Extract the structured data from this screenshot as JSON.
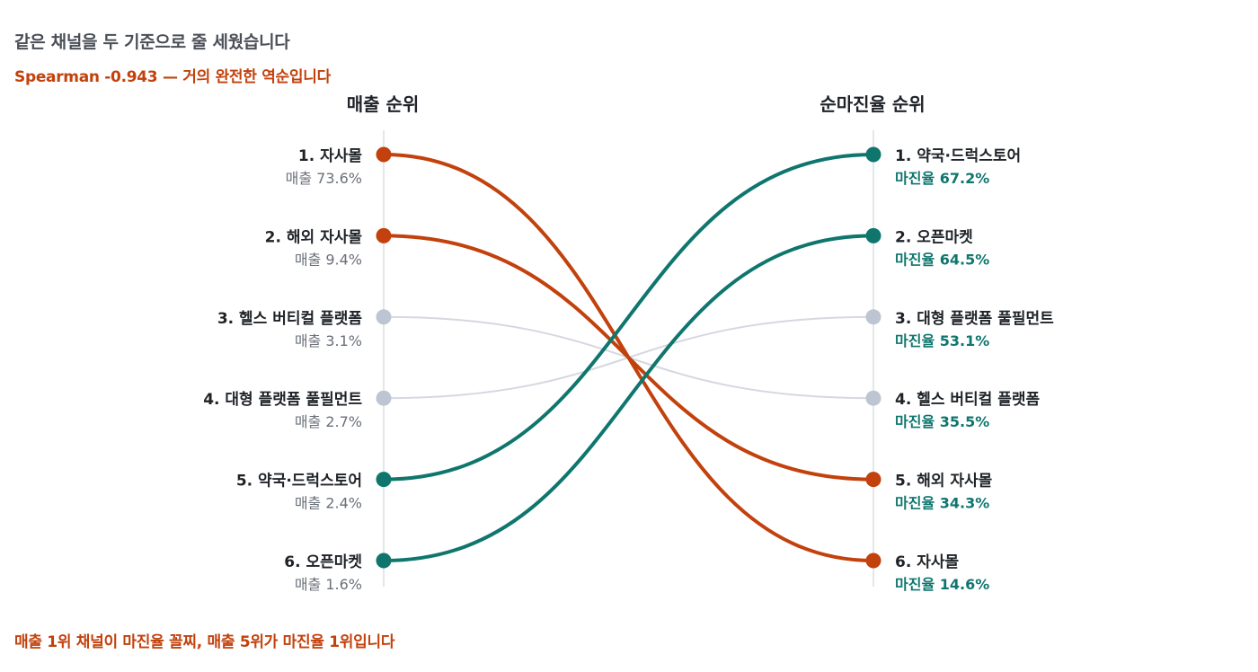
{
  "title": "같은 채널을 두 기준으로 줄 세웠습니다",
  "subtitle": "Spearman -0.943 — 거의 완전한 역순입니다",
  "footnote": "매출 1위 채널이 마진율 꼴찌, 매출 5위가 마진율 1위입니다",
  "colors": {
    "falling": "#c2410c",
    "rising": "#0f766e",
    "neutral_line": "#d5d8e0",
    "neutral_dot": "#bcc5d1",
    "axis": "#dcdde1"
  },
  "chart_data": {
    "type": "slope",
    "left_axis_title": "매출 순위",
    "right_axis_title": "순마진율 순위",
    "left_value_prefix": "매출",
    "right_value_prefix": "마진율",
    "items": [
      {
        "name": "자사몰",
        "sales_rank": 1,
        "sales_share_pct": 73.6,
        "margin_rank": 6,
        "margin_pct": 14.6,
        "highlight": "falling"
      },
      {
        "name": "해외 자사몰",
        "sales_rank": 2,
        "sales_share_pct": 9.4,
        "margin_rank": 5,
        "margin_pct": 34.3,
        "highlight": "falling"
      },
      {
        "name": "헬스 버티컬 플랫폼",
        "sales_rank": 3,
        "sales_share_pct": 3.1,
        "margin_rank": 4,
        "margin_pct": 35.5,
        "highlight": "neutral"
      },
      {
        "name": "대형 플랫폼 풀필먼트",
        "sales_rank": 4,
        "sales_share_pct": 2.7,
        "margin_rank": 3,
        "margin_pct": 53.1,
        "highlight": "neutral"
      },
      {
        "name": "약국·드럭스토어",
        "sales_rank": 5,
        "sales_share_pct": 2.4,
        "margin_rank": 1,
        "margin_pct": 67.2,
        "highlight": "rising"
      },
      {
        "name": "오픈마켓",
        "sales_rank": 6,
        "sales_share_pct": 1.6,
        "margin_rank": 2,
        "margin_pct": 64.5,
        "highlight": "rising"
      }
    ]
  }
}
